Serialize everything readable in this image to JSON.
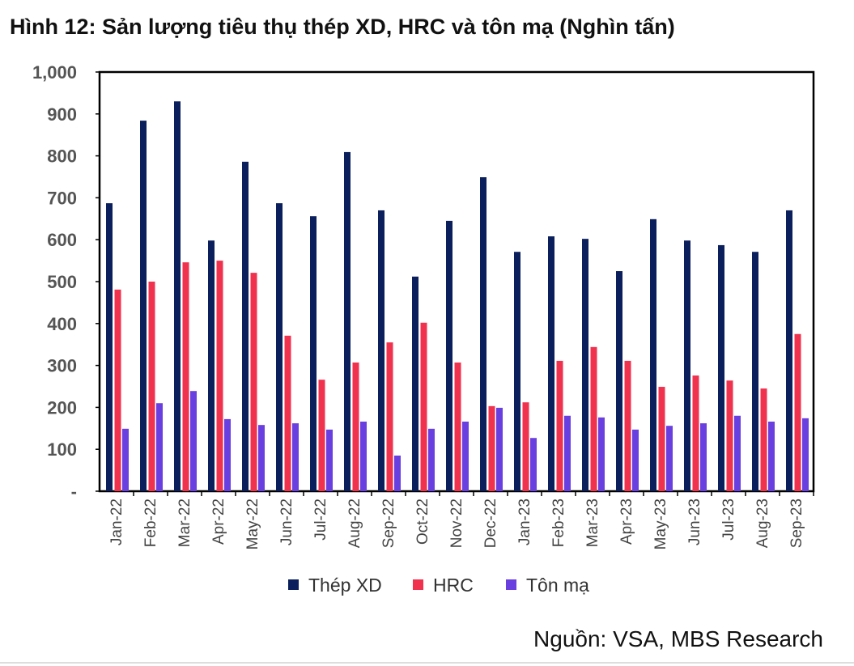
{
  "title": "Hình 12: Sản lượng tiêu thụ thép XD, HRC và tôn mạ (Nghìn tấn)",
  "source": "Nguồn: VSA, MBS Research",
  "chart_data": {
    "type": "bar",
    "title": "Hình 12: Sản lượng tiêu thụ thép XD, HRC và tôn mạ (Nghìn tấn)",
    "categories": [
      "Jan-22",
      "Feb-22",
      "Mar-22",
      "Apr-22",
      "May-22",
      "Jun-22",
      "Jul-22",
      "Aug-22",
      "Sep-22",
      "Oct-22",
      "Nov-22",
      "Dec-22",
      "Jan-23",
      "Feb-23",
      "Mar-23",
      "Apr-23",
      "May-23",
      "Jun-23",
      "Jul-23",
      "Aug-23",
      "Sep-23"
    ],
    "series": [
      {
        "name": "Thép XD",
        "color": "#0a1f5c",
        "values": [
          687,
          884,
          930,
          598,
          786,
          687,
          656,
          809,
          670,
          512,
          645,
          749,
          571,
          608,
          602,
          525,
          649,
          598,
          587,
          571,
          670
        ]
      },
      {
        "name": "HRC",
        "color": "#f0324f",
        "values": [
          481,
          500,
          546,
          550,
          521,
          371,
          266,
          307,
          355,
          402,
          307,
          203,
          212,
          311,
          344,
          311,
          249,
          276,
          264,
          245,
          375
        ]
      },
      {
        "name": "Tôn mạ",
        "color": "#6a3fe0",
        "values": [
          149,
          210,
          239,
          172,
          158,
          162,
          147,
          166,
          85,
          149,
          166,
          199,
          127,
          180,
          176,
          147,
          156,
          162,
          180,
          166,
          174
        ]
      }
    ],
    "ylim": [
      0,
      1000
    ],
    "yticks": [
      0,
      100,
      200,
      300,
      400,
      500,
      600,
      700,
      800,
      900,
      1000
    ],
    "ytick_labels": [
      "-",
      "100",
      "200",
      "300",
      "400",
      "500",
      "600",
      "700",
      "800",
      "900",
      "1,000"
    ],
    "grid": false,
    "legend": "bottom",
    "xlabel": "",
    "ylabel": ""
  }
}
